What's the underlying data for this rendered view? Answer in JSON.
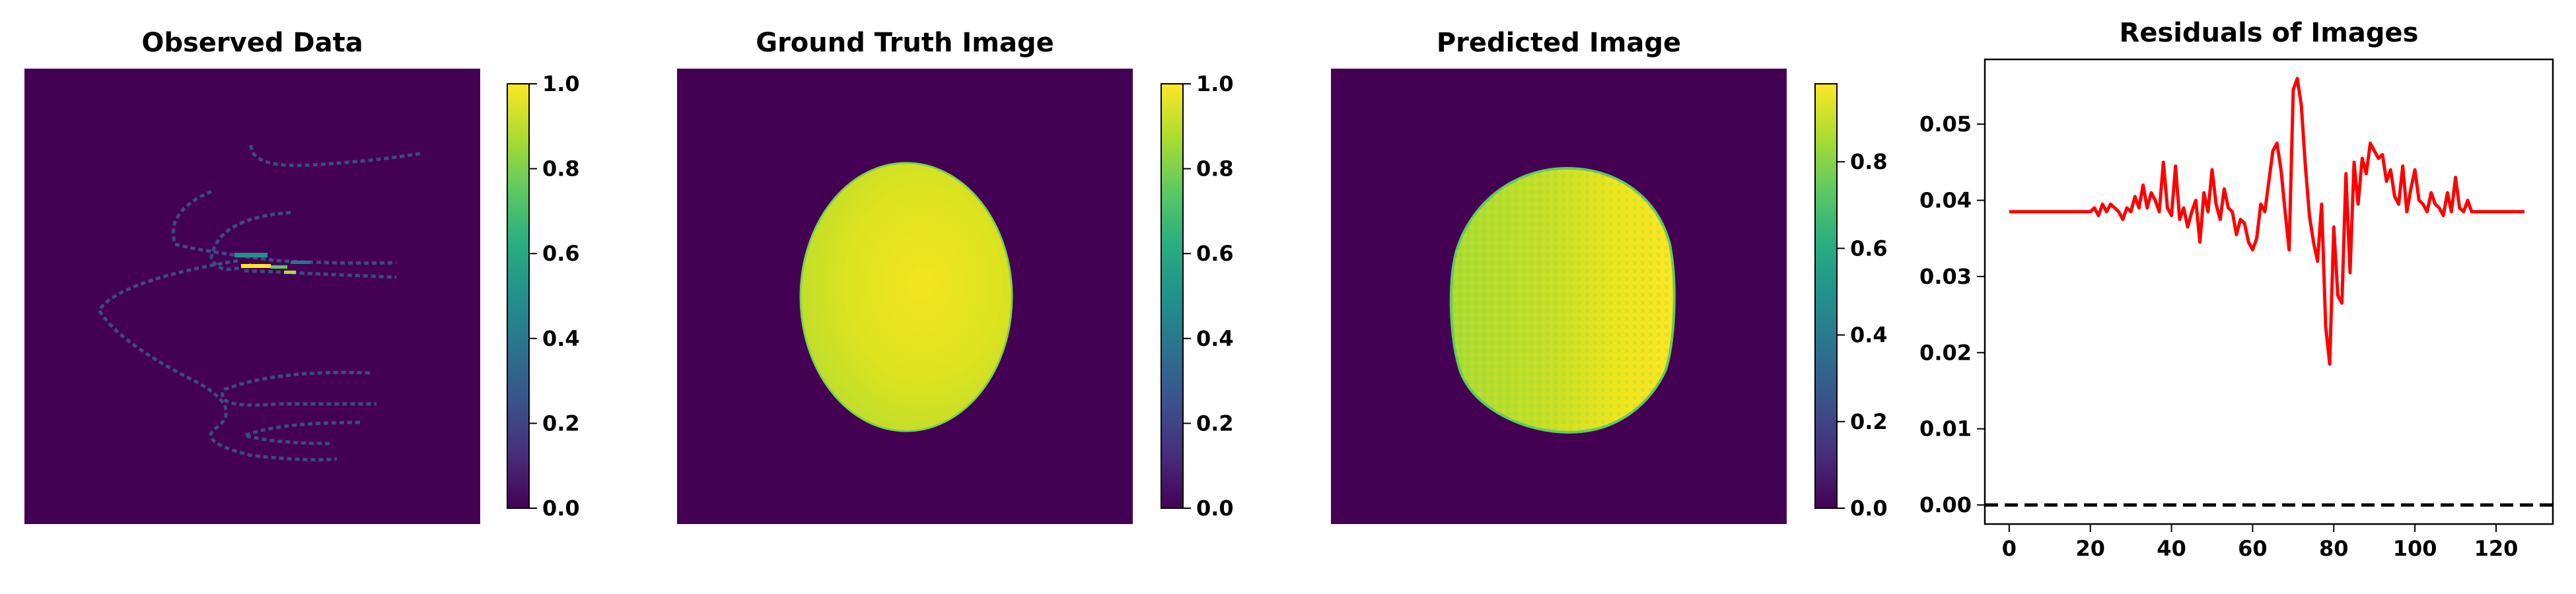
{
  "chart_data": [
    {
      "type": "heatmap",
      "title": "Observed Data",
      "colormap": "viridis",
      "colorbar": {
        "min": 0.0,
        "max": 1.0,
        "ticks": [
          0.0,
          0.2,
          0.4,
          0.6,
          0.8,
          1.0
        ],
        "tick_labels": [
          "0.0",
          "0.2",
          "0.4",
          "0.6",
          "0.8",
          "1.0"
        ]
      },
      "content": "sparse sinogram-like curved traces on dark background"
    },
    {
      "type": "heatmap",
      "title": "Ground Truth Image",
      "colormap": "viridis",
      "colorbar": {
        "min": 0.0,
        "max": 1.0,
        "ticks": [
          0.0,
          0.2,
          0.4,
          0.6,
          0.8,
          1.0
        ],
        "tick_labels": [
          "0.0",
          "0.2",
          "0.4",
          "0.6",
          "0.8",
          "1.0"
        ]
      },
      "content": "smooth ellipse with values ~0.85-0.95"
    },
    {
      "type": "heatmap",
      "title": "Predicted Image",
      "colormap": "viridis",
      "colorbar": {
        "min": 0.0,
        "max": 0.98,
        "ticks": [
          0.0,
          0.2,
          0.4,
          0.6,
          0.8
        ],
        "tick_labels": [
          "0.0",
          "0.2",
          "0.4",
          "0.6",
          "0.8"
        ]
      },
      "content": "noisy ellipse reconstruction with values ~0.8-0.95"
    },
    {
      "type": "line",
      "title": "Residuals of Images",
      "xlabel": "",
      "ylabel": "",
      "xlim": [
        -6,
        134
      ],
      "ylim": [
        -0.0025,
        0.0585
      ],
      "xticks": [
        0,
        20,
        40,
        60,
        80,
        100,
        120
      ],
      "xtick_labels": [
        "0",
        "20",
        "40",
        "60",
        "80",
        "100",
        "120"
      ],
      "yticks": [
        0.0,
        0.01,
        0.02,
        0.03,
        0.04,
        0.05
      ],
      "ytick_labels": [
        "0.00",
        "0.01",
        "0.02",
        "0.03",
        "0.04",
        "0.05"
      ],
      "grid": false,
      "series": [
        {
          "color": "#ff0000",
          "style": "solid",
          "x": [
            0,
            1,
            2,
            3,
            4,
            5,
            6,
            7,
            8,
            9,
            10,
            11,
            12,
            13,
            14,
            15,
            16,
            17,
            18,
            19,
            20,
            21,
            22,
            23,
            24,
            25,
            26,
            27,
            28,
            29,
            30,
            31,
            32,
            33,
            34,
            35,
            36,
            37,
            38,
            39,
            40,
            41,
            42,
            43,
            44,
            45,
            46,
            47,
            48,
            49,
            50,
            51,
            52,
            53,
            54,
            55,
            56,
            57,
            58,
            59,
            60,
            61,
            62,
            63,
            64,
            65,
            66,
            67,
            68,
            69,
            70,
            71,
            72,
            73,
            74,
            75,
            76,
            77,
            78,
            79,
            80,
            81,
            82,
            83,
            84,
            85,
            86,
            87,
            88,
            89,
            90,
            91,
            92,
            93,
            94,
            95,
            96,
            97,
            98,
            99,
            100,
            101,
            102,
            103,
            104,
            105,
            106,
            107,
            108,
            109,
            110,
            111,
            112,
            113,
            114,
            115,
            116,
            117,
            118,
            119,
            120,
            121,
            122,
            123,
            124,
            125,
            126,
            127
          ],
          "y": [
            0.0385,
            0.0385,
            0.0385,
            0.0385,
            0.0385,
            0.0385,
            0.0385,
            0.0385,
            0.0385,
            0.0385,
            0.0385,
            0.0385,
            0.0385,
            0.0385,
            0.0385,
            0.0385,
            0.0385,
            0.0385,
            0.0385,
            0.0385,
            0.0385,
            0.039,
            0.038,
            0.0395,
            0.0385,
            0.0395,
            0.039,
            0.0385,
            0.0375,
            0.039,
            0.0385,
            0.0405,
            0.039,
            0.042,
            0.039,
            0.041,
            0.04,
            0.0385,
            0.045,
            0.039,
            0.038,
            0.0445,
            0.0375,
            0.039,
            0.0365,
            0.0385,
            0.04,
            0.0345,
            0.041,
            0.0385,
            0.044,
            0.0395,
            0.0375,
            0.0415,
            0.039,
            0.0385,
            0.0355,
            0.0375,
            0.037,
            0.0345,
            0.0335,
            0.035,
            0.0395,
            0.0385,
            0.0425,
            0.0465,
            0.0475,
            0.044,
            0.0385,
            0.0335,
            0.0545,
            0.056,
            0.0525,
            0.0445,
            0.038,
            0.0345,
            0.032,
            0.0395,
            0.0235,
            0.0185,
            0.0365,
            0.0275,
            0.0265,
            0.0435,
            0.0305,
            0.045,
            0.0395,
            0.0455,
            0.0435,
            0.0475,
            0.0465,
            0.0455,
            0.046,
            0.0425,
            0.044,
            0.0405,
            0.0395,
            0.0445,
            0.0385,
            0.0415,
            0.044,
            0.04,
            0.0395,
            0.0385,
            0.041,
            0.0395,
            0.039,
            0.038,
            0.041,
            0.0385,
            0.043,
            0.039,
            0.0385,
            0.04,
            0.0385,
            0.0385,
            0.0385,
            0.0385,
            0.0385,
            0.0385,
            0.0385,
            0.0385,
            0.0385,
            0.0385,
            0.0385,
            0.0385,
            0.0385,
            0.0385
          ]
        },
        {
          "color": "#000000",
          "style": "dashed",
          "x": [
            -6,
            134
          ],
          "y": [
            0.0,
            0.0
          ]
        }
      ]
    }
  ]
}
